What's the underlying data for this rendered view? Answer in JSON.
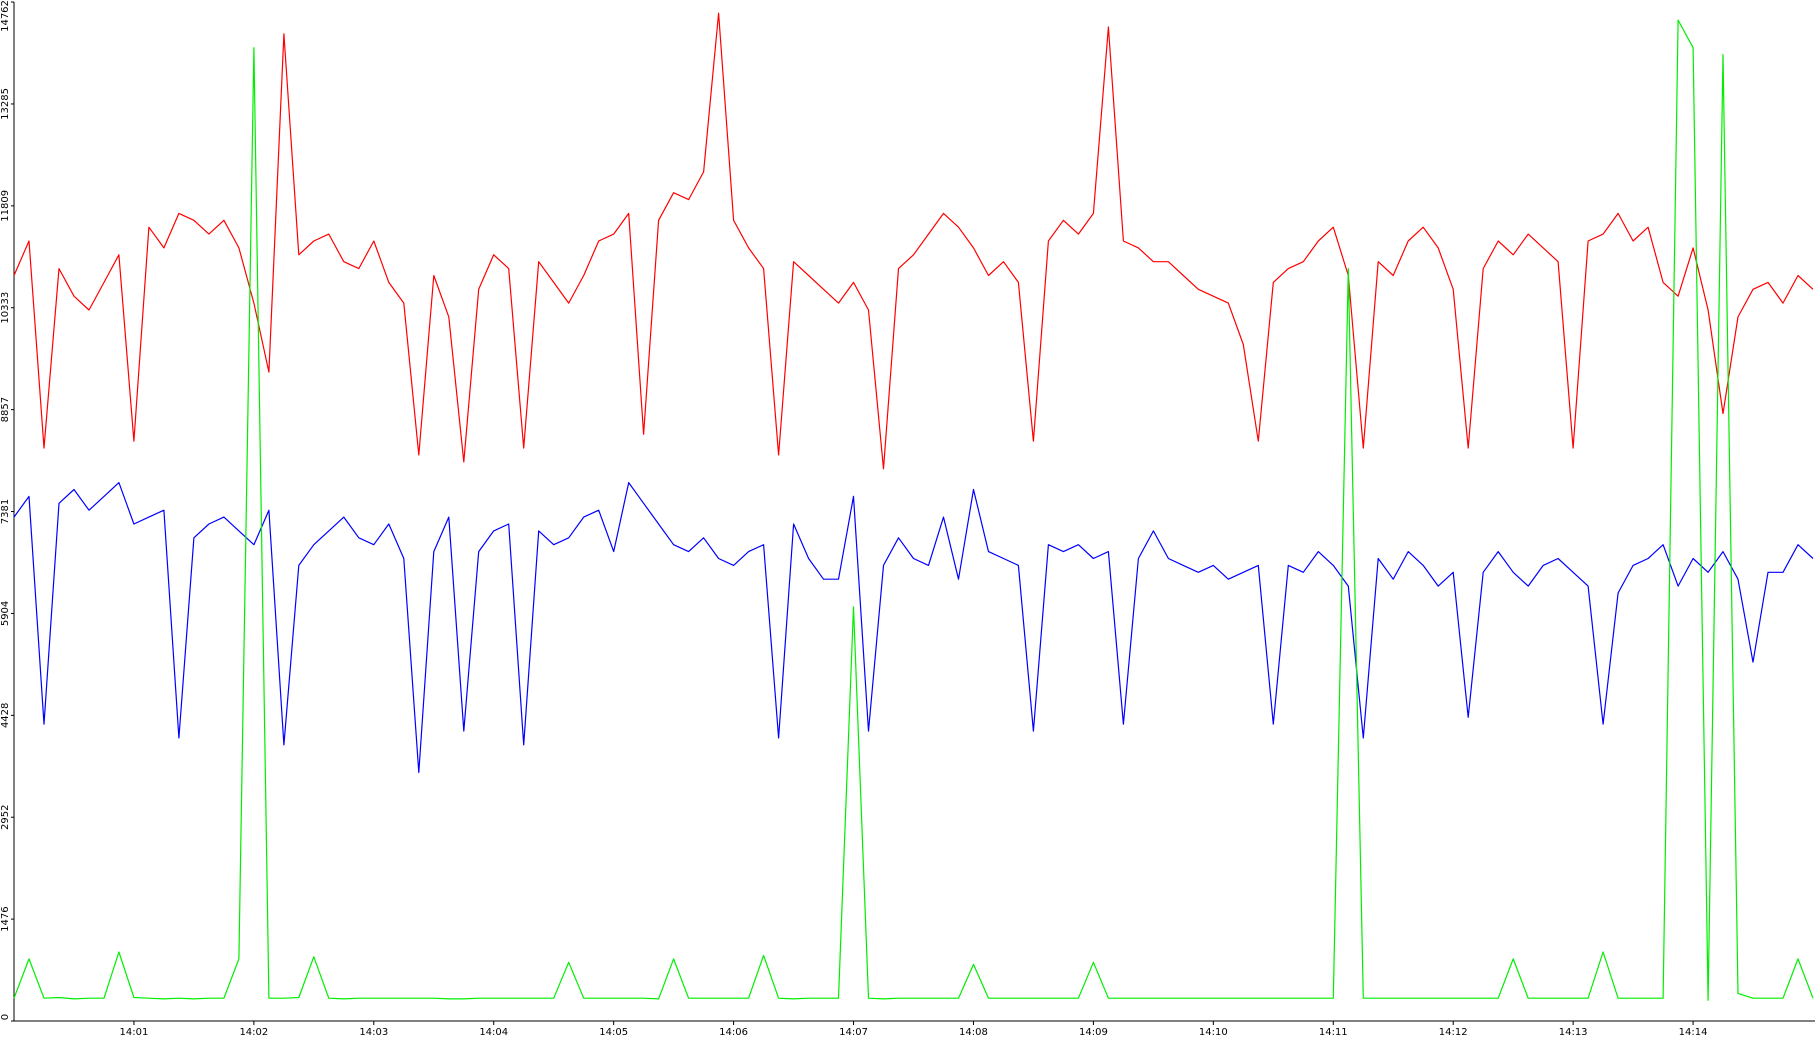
{
  "chart_data": {
    "type": "line",
    "categories": [
      null,
      null,
      null,
      null,
      null,
      null,
      null,
      null,
      "14:01",
      null,
      null,
      null,
      null,
      null,
      null,
      null,
      "14:02",
      null,
      null,
      null,
      null,
      null,
      null,
      null,
      "14:03",
      null,
      null,
      null,
      null,
      null,
      null,
      null,
      "14:04",
      null,
      null,
      null,
      null,
      null,
      null,
      null,
      "14:05",
      null,
      null,
      null,
      null,
      null,
      null,
      null,
      "14:06",
      null,
      null,
      null,
      null,
      null,
      null,
      null,
      "14:07",
      null,
      null,
      null,
      null,
      null,
      null,
      null,
      "14:08",
      null,
      null,
      null,
      null,
      null,
      null,
      null,
      "14:09",
      null,
      null,
      null,
      null,
      null,
      null,
      null,
      "14:10",
      null,
      null,
      null,
      null,
      null,
      null,
      null,
      "14:11",
      null,
      null,
      null,
      null,
      null,
      null,
      null,
      "14:12",
      null,
      null,
      null,
      null,
      null,
      null,
      null,
      "14:13",
      null,
      null,
      null,
      null,
      null,
      null,
      null,
      "14:14",
      null,
      null,
      null,
      null,
      null,
      null,
      null,
      null
    ],
    "series": [
      {
        "color": "#ff0000",
        "values": [
          10800,
          11300,
          8300,
          10900,
          10500,
          10300,
          10700,
          11100,
          8400,
          11500,
          11200,
          11700,
          11600,
          11400,
          11600,
          11200,
          10400,
          9400,
          14300,
          11100,
          11300,
          11400,
          11000,
          10900,
          11300,
          10700,
          10400,
          8200,
          10800,
          10200,
          8100,
          10600,
          11100,
          10900,
          8300,
          11000,
          10700,
          10400,
          10800,
          11300,
          11400,
          11700,
          8500,
          11600,
          12000,
          11900,
          12300,
          14600,
          11600,
          11200,
          10900,
          8200,
          11000,
          10800,
          10600,
          10400,
          10700,
          10300,
          8000,
          10900,
          11100,
          11400,
          11700,
          11500,
          11200,
          10800,
          11000,
          10700,
          8400,
          11300,
          11600,
          11400,
          11700,
          14400,
          11300,
          11200,
          11000,
          11000,
          10800,
          10600,
          10500,
          10400,
          9800,
          8400,
          10700,
          10900,
          11000,
          11300,
          11500,
          10800,
          8300,
          11000,
          10800,
          11300,
          11500,
          11200,
          10600,
          8300,
          10900,
          11300,
          11100,
          11400,
          11200,
          11000,
          8300,
          11300,
          11400,
          11700,
          11300,
          11500,
          10700,
          10500,
          11200,
          10300,
          8800,
          10200,
          10600,
          10700,
          10400,
          10800,
          10600
        ]
      },
      {
        "color": "#0000ff",
        "values": [
          7300,
          7600,
          4300,
          7500,
          7700,
          7400,
          7600,
          7800,
          7200,
          7300,
          7400,
          4100,
          7000,
          7200,
          7300,
          7100,
          6900,
          7400,
          4000,
          6600,
          6900,
          7100,
          7300,
          7000,
          6900,
          7200,
          6700,
          3600,
          6800,
          7300,
          4200,
          6800,
          7100,
          7200,
          4000,
          7100,
          6900,
          7000,
          7300,
          7400,
          6800,
          7800,
          7500,
          7200,
          6900,
          6800,
          7000,
          6700,
          6600,
          6800,
          6900,
          4100,
          7200,
          6700,
          6400,
          6400,
          7600,
          4200,
          6600,
          7000,
          6700,
          6600,
          7300,
          6400,
          7700,
          6800,
          6700,
          6600,
          4200,
          6900,
          6800,
          6900,
          6700,
          6800,
          4300,
          6700,
          7100,
          6700,
          6600,
          6500,
          6600,
          6400,
          6500,
          6600,
          4300,
          6600,
          6500,
          6800,
          6600,
          6300,
          4100,
          6700,
          6400,
          6800,
          6600,
          6300,
          6500,
          4400,
          6500,
          6800,
          6500,
          6300,
          6600,
          6700,
          6500,
          6300,
          4300,
          6200,
          6600,
          6700,
          6900,
          6300,
          6700,
          6500,
          6800,
          6400,
          5200,
          6500,
          6500,
          6900,
          6700
        ]
      },
      {
        "color": "#00ee00",
        "values": [
          330,
          900,
          330,
          340,
          320,
          330,
          330,
          1000,
          340,
          330,
          320,
          330,
          320,
          330,
          330,
          900,
          14100,
          330,
          330,
          340,
          930,
          330,
          320,
          330,
          330,
          330,
          330,
          330,
          330,
          320,
          320,
          330,
          330,
          330,
          330,
          330,
          330,
          850,
          330,
          330,
          330,
          330,
          330,
          320,
          900,
          330,
          330,
          330,
          330,
          330,
          950,
          330,
          320,
          330,
          330,
          330,
          6000,
          330,
          320,
          330,
          330,
          330,
          330,
          330,
          820,
          330,
          330,
          330,
          330,
          330,
          330,
          330,
          850,
          330,
          330,
          330,
          330,
          330,
          330,
          330,
          330,
          330,
          330,
          330,
          330,
          330,
          330,
          330,
          330,
          10900,
          330,
          330,
          330,
          330,
          330,
          330,
          330,
          330,
          330,
          330,
          900,
          330,
          330,
          330,
          330,
          330,
          1000,
          330,
          330,
          330,
          330,
          14500,
          14100,
          300,
          14000,
          400,
          330,
          330,
          330,
          900,
          330
        ]
      }
    ],
    "ylim": [
      0,
      14762
    ],
    "yticks": [
      0,
      1476,
      2952,
      4428,
      5904,
      7381,
      8857,
      10333,
      11809,
      13285,
      14762
    ]
  }
}
